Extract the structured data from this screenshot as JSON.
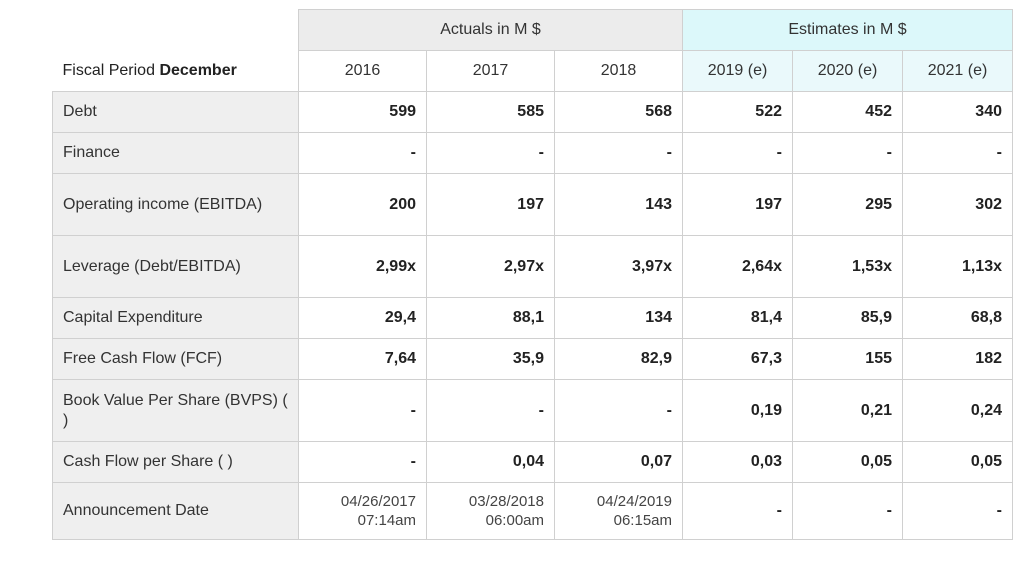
{
  "header": {
    "fiscal_label": "Fiscal Period",
    "fiscal_value": "December",
    "actuals_group": "Actuals in M $",
    "estimates_group": "Estimates in M $",
    "years": [
      "2016",
      "2017",
      "2018",
      "2019 (e)",
      "2020 (e)",
      "2021 (e)"
    ]
  },
  "rows": [
    {
      "label": "Debt",
      "values": [
        "599",
        "585",
        "568",
        "522",
        "452",
        "340"
      ]
    },
    {
      "label": "Finance",
      "values": [
        "-",
        "-",
        "-",
        "-",
        "-",
        "-"
      ]
    },
    {
      "label": "Operating income (EBITDA)",
      "values": [
        "200",
        "197",
        "143",
        "197",
        "295",
        "302"
      ]
    },
    {
      "label": "Leverage (Debt/EBITDA)",
      "values": [
        "2,99x",
        "2,97x",
        "3,97x",
        "2,64x",
        "1,53x",
        "1,13x"
      ]
    },
    {
      "label": "Capital Expenditure",
      "values": [
        "29,4",
        "88,1",
        "134",
        "81,4",
        "85,9",
        "68,8"
      ]
    },
    {
      "label": "Free Cash Flow (FCF)",
      "values": [
        "7,64",
        "35,9",
        "82,9",
        "67,3",
        "155",
        "182"
      ]
    },
    {
      "label": "Book Value Per Share (BVPS) ( )",
      "values": [
        "-",
        "-",
        "-",
        "0,19",
        "0,21",
        "0,24"
      ]
    },
    {
      "label": "Cash Flow per Share ( )",
      "values": [
        "-",
        "0,04",
        "0,07",
        "0,03",
        "0,05",
        "0,05"
      ]
    }
  ],
  "announcement": {
    "label": "Announcement Date",
    "dates": [
      {
        "date": "04/26/2017",
        "time": "07:14am"
      },
      {
        "date": "03/28/2018",
        "time": "06:00am"
      },
      {
        "date": "04/24/2019",
        "time": "06:15am"
      }
    ],
    "estimates": [
      "-",
      "-",
      "-"
    ]
  }
}
